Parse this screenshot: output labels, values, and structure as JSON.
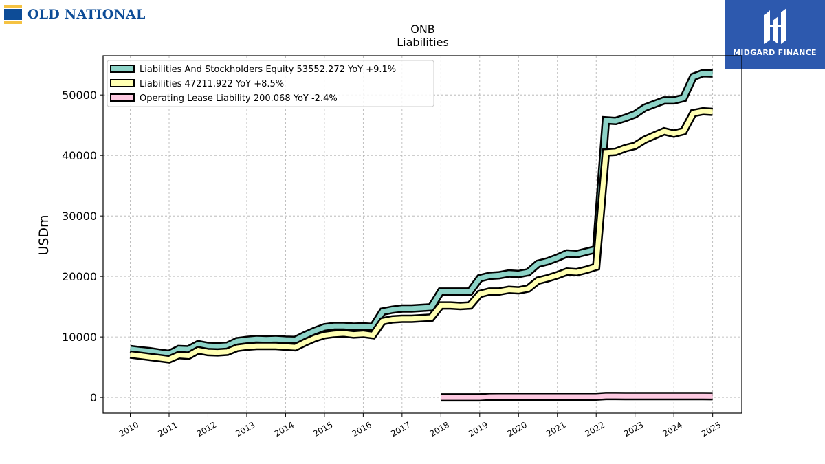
{
  "branding": {
    "left_logo_text": "OLD NATIONAL",
    "right_logo_text": "MIDGARD FINANCE",
    "left_colors": {
      "blue": "#0d4c97",
      "gold": "#f5c242"
    },
    "right_color": "#2d59ae"
  },
  "chart_data": {
    "type": "line",
    "title": "ONB",
    "subtitle": "Liabilities",
    "xlabel": "",
    "ylabel": "USDm",
    "xlim": [
      2009.3,
      2025.75
    ],
    "ylim": [
      -2600,
      56500
    ],
    "x_ticks": [
      "2010",
      "2011",
      "2012",
      "2013",
      "2014",
      "2015",
      "2016",
      "2017",
      "2018",
      "2019",
      "2020",
      "2021",
      "2022",
      "2023",
      "2024",
      "2025"
    ],
    "y_ticks": [
      0,
      10000,
      20000,
      30000,
      40000,
      50000
    ],
    "y_tick_labels": [
      "0",
      "10000",
      "20000",
      "30000",
      "40000",
      "50000"
    ],
    "grid": true,
    "legend_position": "top-left",
    "series": [
      {
        "name": "Liabilities And Stockholders Equity",
        "legend_label": "Liabilities And Stockholders Equity  53552.272 YoY +9.1%",
        "color": "#8dd3c7",
        "x": [
          2010.0,
          2010.25,
          2010.5,
          2010.75,
          2011.0,
          2011.25,
          2011.5,
          2011.75,
          2012.0,
          2012.25,
          2012.5,
          2012.75,
          2013.0,
          2013.25,
          2013.5,
          2013.75,
          2014.0,
          2014.25,
          2014.5,
          2014.75,
          2015.0,
          2015.25,
          2015.5,
          2015.75,
          2016.0,
          2016.25,
          2016.5,
          2016.75,
          2017.0,
          2017.25,
          2017.5,
          2017.75,
          2018.0,
          2018.25,
          2018.5,
          2018.75,
          2019.0,
          2019.25,
          2019.5,
          2019.75,
          2020.0,
          2020.25,
          2020.5,
          2020.75,
          2021.0,
          2021.25,
          2021.5,
          2021.75,
          2022.0,
          2022.25,
          2022.5,
          2022.75,
          2023.0,
          2023.25,
          2023.5,
          2023.75,
          2024.0,
          2024.25,
          2024.5,
          2024.75,
          2025.0
        ],
        "values": [
          8000,
          7800,
          7650,
          7400,
          7200,
          8000,
          7950,
          8800,
          8500,
          8450,
          8550,
          9300,
          9500,
          9650,
          9600,
          9650,
          9550,
          9500,
          10300,
          11000,
          11600,
          11800,
          11800,
          11700,
          11750,
          11650,
          14200,
          14500,
          14700,
          14700,
          14800,
          14900,
          17500,
          17500,
          17500,
          17500,
          19700,
          20100,
          20200,
          20500,
          20400,
          20700,
          22100,
          22500,
          23100,
          23800,
          23700,
          24100,
          24500,
          45800,
          45700,
          46200,
          46800,
          47900,
          48500,
          49100,
          49100,
          49500,
          53000,
          53600,
          53552
        ]
      },
      {
        "name": "Liabilities",
        "legend_label": "Liabilities  47211.922 YoY +8.5%",
        "color": "#ffffb3",
        "x": [
          2010.0,
          2010.25,
          2010.5,
          2010.75,
          2011.0,
          2011.25,
          2011.5,
          2011.75,
          2012.0,
          2012.25,
          2012.5,
          2012.75,
          2013.0,
          2013.25,
          2013.5,
          2013.75,
          2014.0,
          2014.25,
          2014.5,
          2014.75,
          2015.0,
          2015.25,
          2015.5,
          2015.75,
          2016.0,
          2016.25,
          2016.5,
          2016.75,
          2017.0,
          2017.25,
          2017.5,
          2017.75,
          2018.0,
          2018.25,
          2018.5,
          2018.75,
          2019.0,
          2019.25,
          2019.5,
          2019.75,
          2020.0,
          2020.25,
          2020.5,
          2020.75,
          2021.0,
          2021.25,
          2021.5,
          2021.75,
          2022.0,
          2022.25,
          2022.5,
          2022.75,
          2023.0,
          2023.25,
          2023.5,
          2023.75,
          2024.0,
          2024.25,
          2024.5,
          2024.75,
          2025.0
        ],
        "values": [
          7100,
          6900,
          6700,
          6500,
          6300,
          7000,
          6900,
          7800,
          7500,
          7450,
          7550,
          8200,
          8400,
          8500,
          8500,
          8500,
          8400,
          8300,
          9100,
          9800,
          10300,
          10500,
          10600,
          10400,
          10500,
          10300,
          12600,
          12900,
          13000,
          13000,
          13100,
          13200,
          15200,
          15200,
          15100,
          15200,
          17100,
          17500,
          17500,
          17800,
          17700,
          18000,
          19300,
          19700,
          20200,
          20800,
          20700,
          21100,
          21600,
          40500,
          40600,
          41200,
          41600,
          42600,
          43300,
          44000,
          43600,
          44000,
          47000,
          47300,
          47212
        ]
      },
      {
        "name": "Operating Lease Liability",
        "legend_label": "Operating Lease Liability  200.068 YoY -2.4%",
        "color": "#fdc9e1",
        "x": [
          2018.0,
          2018.25,
          2018.5,
          2018.75,
          2019.0,
          2019.25,
          2019.5,
          2019.75,
          2020.0,
          2020.25,
          2020.5,
          2020.75,
          2021.0,
          2021.25,
          2021.5,
          2021.75,
          2022.0,
          2022.25,
          2022.5,
          2022.75,
          2023.0,
          2023.25,
          2023.5,
          2023.75,
          2024.0,
          2024.25,
          2024.5,
          2024.75,
          2025.0
        ],
        "values": [
          0,
          0,
          0,
          0,
          0,
          120,
          125,
          125,
          125,
          125,
          125,
          125,
          125,
          125,
          125,
          125,
          125,
          230,
          225,
          220,
          220,
          220,
          215,
          215,
          210,
          210,
          205,
          205,
          200
        ]
      }
    ]
  }
}
